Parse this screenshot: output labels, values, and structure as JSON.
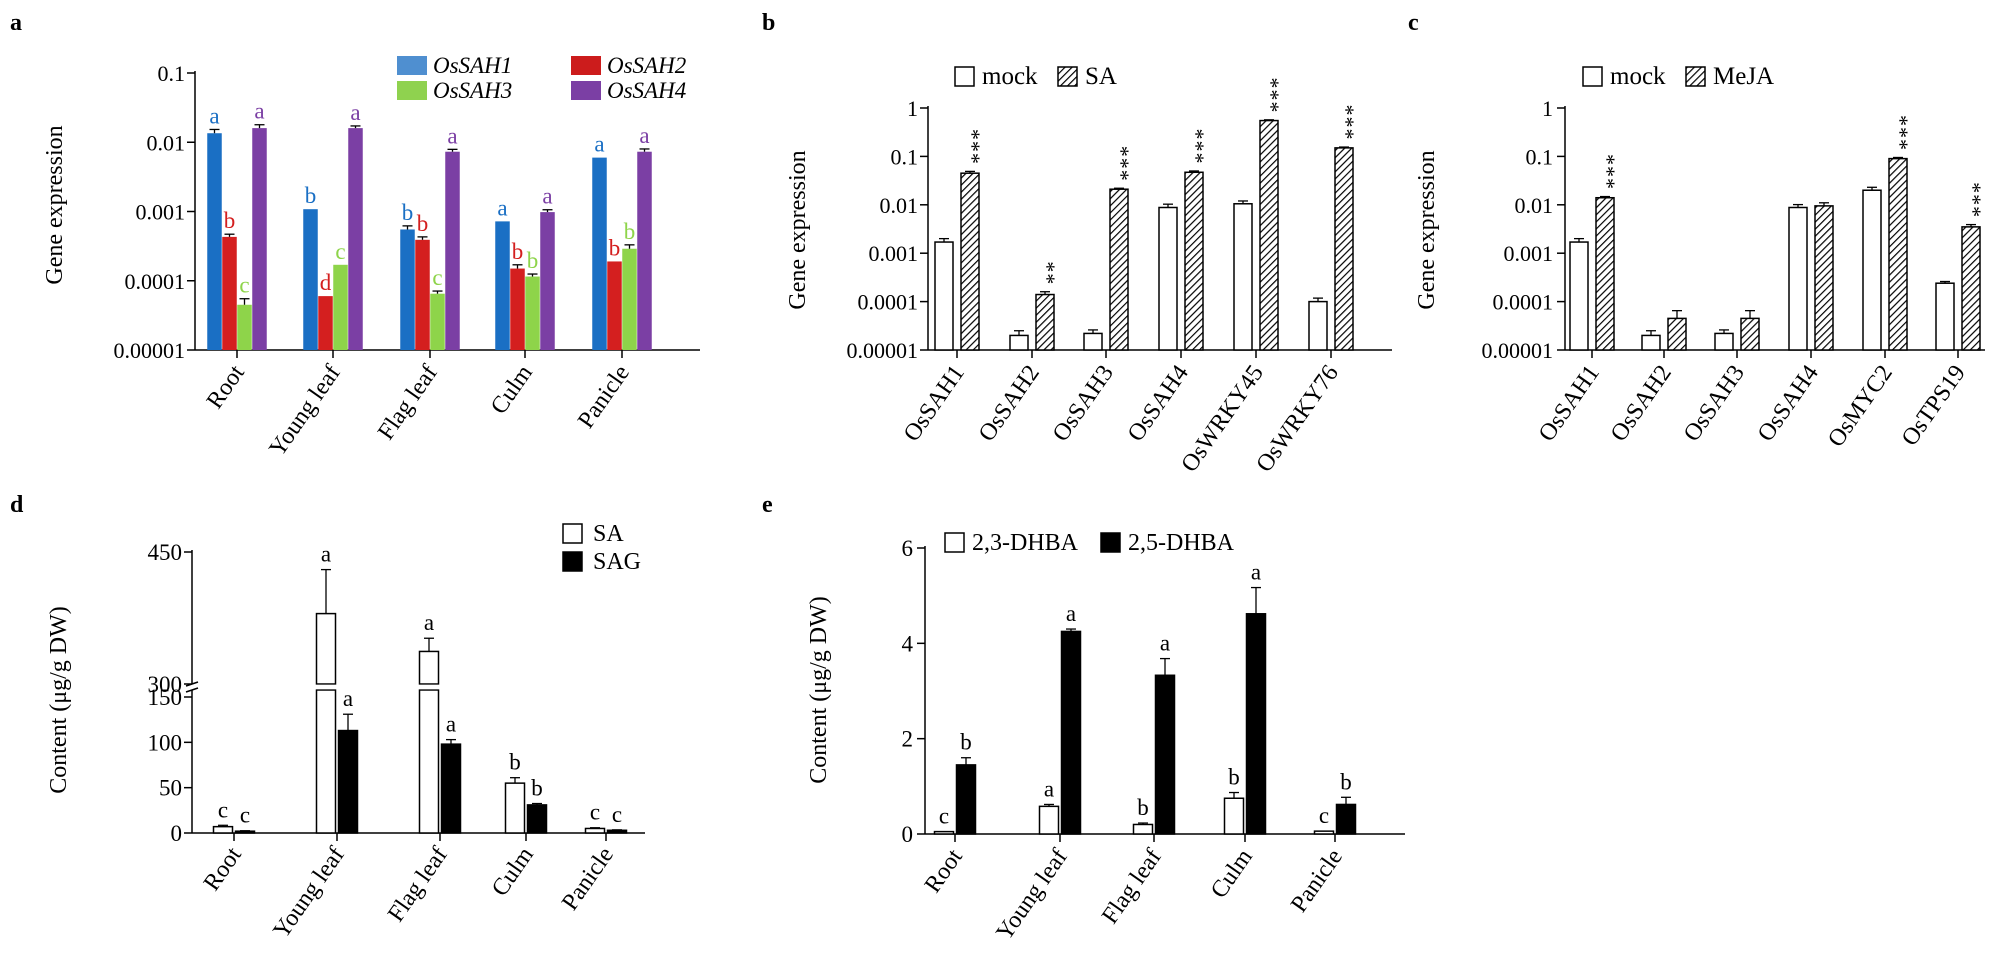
{
  "figure": {
    "panel_letters": [
      "a",
      "b",
      "c",
      "d",
      "e"
    ]
  },
  "chart_data": [
    {
      "id": "a",
      "type": "bar",
      "scale": "log",
      "ylabel": "Gene expression",
      "ylim": [
        1e-05,
        0.1
      ],
      "yticks": [
        1e-05,
        0.0001,
        0.001,
        0.01,
        0.1
      ],
      "ytick_labels": [
        "0.00001",
        "0.0001",
        "0.001",
        "0.01",
        "0.1"
      ],
      "categories": [
        "Root",
        "Young leaf",
        "Flag leaf",
        "Culm",
        "Panicle"
      ],
      "legend_position": "top-right",
      "series": [
        {
          "name": "OsSAH1",
          "color": "#1a6fc4",
          "legend_color": "#4f8fd0",
          "values": [
            0.0135,
            0.00108,
            0.00055,
            0.00072,
            0.006
          ],
          "errors": [
            0.0018,
            0,
            7e-05,
            0,
            0
          ],
          "letters": [
            "a",
            "b",
            "b",
            "a",
            "a"
          ]
        },
        {
          "name": "OsSAH2",
          "color": "#d41f1f",
          "legend_color": "#cc1c1c",
          "values": [
            0.00043,
            6e-05,
            0.00039,
            0.00015,
            0.00019
          ],
          "errors": [
            4e-05,
            0,
            4e-05,
            2e-05,
            0
          ],
          "letters": [
            "b",
            "d",
            "b",
            "b",
            "b"
          ]
        },
        {
          "name": "OsSAH3",
          "color": "#8ed44a",
          "legend_color": "#8fd24f",
          "values": [
            4.5e-05,
            0.00017,
            6.5e-05,
            0.000115,
            0.00029
          ],
          "errors": [
            1e-05,
            0,
            6e-06,
            1e-05,
            4e-05
          ],
          "letters": [
            "c",
            "c",
            "c",
            "b",
            "b"
          ]
        },
        {
          "name": "OsSAH4",
          "color": "#7b3fa4",
          "legend_color": "#7b3fa4",
          "values": [
            0.016,
            0.016,
            0.0073,
            0.00098,
            0.0073
          ],
          "errors": [
            0.0019,
            0.0012,
            0.0006,
            8e-05,
            0.0007
          ],
          "letters": [
            "a",
            "a",
            "a",
            "a",
            "a"
          ]
        }
      ]
    },
    {
      "id": "b",
      "type": "bar",
      "scale": "log",
      "ylabel": "Gene expression",
      "ylim": [
        1e-05,
        1
      ],
      "yticks": [
        1e-05,
        0.0001,
        0.001,
        0.01,
        0.1,
        1
      ],
      "ytick_labels": [
        "0.00001",
        "0.0001",
        "0.001",
        "0.01",
        "0.1",
        "1"
      ],
      "categories": [
        "OsSAH1",
        "OsSAH2",
        "OsSAH3",
        "OsSAH4",
        "OsWRKY45",
        "OsWRKY76"
      ],
      "legend_position": "top-left",
      "series": [
        {
          "name": "mock",
          "fill": "open",
          "values": [
            0.0017,
            2e-05,
            2.2e-05,
            0.0088,
            0.0105,
            0.0001
          ],
          "errors": [
            0.0003,
            5e-06,
            4e-06,
            0.0015,
            0.0015,
            1.8e-05
          ]
        },
        {
          "name": "SA",
          "fill": "hatched",
          "values": [
            0.045,
            0.00014,
            0.021,
            0.047,
            0.55,
            0.15
          ],
          "errors": [
            0.004,
            2e-05,
            0.001,
            0.003,
            0.02,
            0.006
          ]
        }
      ],
      "significance": [
        "***",
        "**",
        "***",
        "***",
        "***",
        "***"
      ]
    },
    {
      "id": "c",
      "type": "bar",
      "scale": "log",
      "ylabel": "Gene expression",
      "ylim": [
        1e-05,
        1
      ],
      "yticks": [
        1e-05,
        0.0001,
        0.001,
        0.01,
        0.1,
        1
      ],
      "ytick_labels": [
        "0.00001",
        "0.0001",
        "0.001",
        "0.01",
        "0.1",
        "1"
      ],
      "categories": [
        "OsSAH1",
        "OsSAH2",
        "OsSAH3",
        "OsSAH4",
        "OsMYC2",
        "OsTPS19"
      ],
      "legend_position": "top-left",
      "series": [
        {
          "name": "mock",
          "fill": "open",
          "values": [
            0.0017,
            2e-05,
            2.2e-05,
            0.0088,
            0.02,
            0.00024
          ],
          "errors": [
            0.0003,
            5e-06,
            4e-06,
            0.0013,
            0.003,
            2e-05
          ]
        },
        {
          "name": "MeJA",
          "fill": "hatched",
          "values": [
            0.014,
            4.5e-05,
            4.5e-05,
            0.0095,
            0.09,
            0.0035
          ],
          "errors": [
            0.0008,
            2e-05,
            2e-05,
            0.0015,
            0.005,
            0.0004
          ]
        }
      ],
      "significance": [
        "***",
        "",
        "",
        "",
        "***",
        "***"
      ]
    },
    {
      "id": "d",
      "type": "bar",
      "scale": "broken",
      "ylabel": "Content (μg/g DW)",
      "lower_range": [
        0,
        150
      ],
      "upper_range": [
        300,
        450
      ],
      "yticks": [
        0,
        50,
        100,
        150,
        300,
        450
      ],
      "ytick_labels": [
        "0",
        "50",
        "100",
        "150",
        "300",
        "450"
      ],
      "categories": [
        "Root",
        "Young leaf",
        "Flag leaf",
        "Culm",
        "Panicle"
      ],
      "legend_position": "top-right",
      "series": [
        {
          "name": "SA",
          "fill": "open",
          "values": [
            7,
            380,
            337,
            55,
            5
          ],
          "errors": [
            1.5,
            50,
            15,
            6,
            0.8
          ],
          "letters": [
            "c",
            "a",
            "a",
            "b",
            "c"
          ]
        },
        {
          "name": "SAG",
          "fill": "solid",
          "values": [
            2,
            113,
            98,
            31,
            3
          ],
          "errors": [
            0.5,
            18,
            5,
            1.5,
            0.5
          ],
          "letters": [
            "c",
            "a",
            "a",
            "b",
            "c"
          ]
        }
      ]
    },
    {
      "id": "e",
      "type": "bar",
      "scale": "linear",
      "ylabel": "Content (μg/g DW)",
      "ylim": [
        0,
        6
      ],
      "yticks": [
        0,
        2,
        4,
        6
      ],
      "ytick_labels": [
        "0",
        "2",
        "4",
        "6"
      ],
      "categories": [
        "Root",
        "Young leaf",
        "Flag leaf",
        "Culm",
        "Panicle"
      ],
      "legend_position": "top-left",
      "series": [
        {
          "name": "2,3-DHBA",
          "fill": "open",
          "values": [
            0.05,
            0.58,
            0.2,
            0.75,
            0.06
          ],
          "errors": [
            0,
            0.04,
            0.03,
            0.12,
            0
          ],
          "letters": [
            "c",
            "a",
            "b",
            "b",
            "c"
          ]
        },
        {
          "name": "2,5-DHBA",
          "fill": "solid",
          "values": [
            1.45,
            4.25,
            3.33,
            4.62,
            0.62
          ],
          "errors": [
            0.15,
            0.05,
            0.35,
            0.55,
            0.15
          ],
          "letters": [
            "b",
            "a",
            "a",
            "a",
            "b"
          ]
        }
      ]
    }
  ]
}
